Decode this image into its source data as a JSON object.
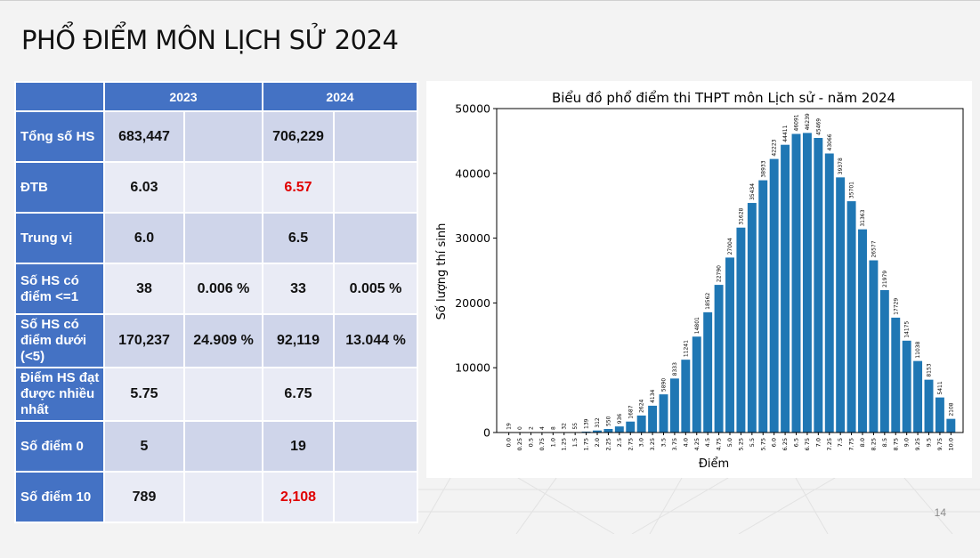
{
  "slide": {
    "title": "PHỔ ĐIỂM MÔN LỊCH SỬ 2024",
    "page_number": "14"
  },
  "table": {
    "headers": [
      "",
      "2023",
      "2024"
    ],
    "rows": [
      {
        "label": "Tổng số HS",
        "v2023": "683,447",
        "p2023": "",
        "v2024": "706,229",
        "p2024": "",
        "highlight2024": false
      },
      {
        "label": "ĐTB",
        "v2023": "6.03",
        "p2023": "",
        "v2024": "6.57",
        "p2024": "",
        "highlight2024": true
      },
      {
        "label": "Trung vị",
        "v2023": "6.0",
        "p2023": "",
        "v2024": "6.5",
        "p2024": "",
        "highlight2024": false
      },
      {
        "label": "Số HS có điểm <=1",
        "v2023": "38",
        "p2023": "0.006 %",
        "v2024": "33",
        "p2024": "0.005 %",
        "highlight2024": false
      },
      {
        "label": "Số HS có điểm dưới (<5)",
        "v2023": "170,237",
        "p2023": "24.909 %",
        "v2024": "92,119",
        "p2024": "13.044 %",
        "highlight2024": false
      },
      {
        "label": "Điểm HS đạt được nhiều nhất",
        "v2023": "5.75",
        "p2023": "",
        "v2024": "6.75",
        "p2024": "",
        "highlight2024": false
      },
      {
        "label": "Số điểm 0",
        "v2023": "5",
        "p2023": "",
        "v2024": "19",
        "p2024": "",
        "highlight2024": false
      },
      {
        "label": "Số điểm 10",
        "v2023": "789",
        "p2023": "",
        "v2024": "2,108",
        "p2024": "",
        "highlight2024": true
      }
    ]
  },
  "colors": {
    "header_blue": "#4472c4",
    "bar_blue": "#1f77b4",
    "highlight_red": "#e00000"
  },
  "chart_data": {
    "type": "bar",
    "title": "Biểu đồ phổ điểm thi THPT môn Lịch sử - năm 2024",
    "xlabel": "Điểm",
    "ylabel": "Số lượng thí sinh",
    "ylim": [
      0,
      50000
    ],
    "yticks": [
      0,
      10000,
      20000,
      30000,
      40000,
      50000
    ],
    "grid": false,
    "categories": [
      "0.0",
      "0.25",
      "0.5",
      "0.75",
      "1.0",
      "1.25",
      "1.5",
      "1.75",
      "2.0",
      "2.25",
      "2.5",
      "2.75",
      "3.0",
      "3.25",
      "3.5",
      "3.75",
      "4.0",
      "4.25",
      "4.5",
      "4.75",
      "5.0",
      "5.25",
      "5.5",
      "5.75",
      "6.0",
      "6.25",
      "6.5",
      "6.75",
      "7.0",
      "7.25",
      "7.5",
      "7.75",
      "8.0",
      "8.25",
      "8.5",
      "8.75",
      "9.0",
      "9.25",
      "9.5",
      "9.75",
      "10.0"
    ],
    "values": [
      19,
      0,
      2,
      4,
      8,
      32,
      55,
      139,
      312,
      550,
      936,
      1687,
      2624,
      4134,
      5890,
      8333,
      11241,
      14801,
      18562,
      22790,
      27004,
      31628,
      35434,
      38933,
      42223,
      44411,
      46091,
      46239,
      45469,
      43066,
      39378,
      35701,
      31363,
      26577,
      21979,
      17729,
      14175,
      11038,
      8153,
      5411,
      2108
    ]
  }
}
